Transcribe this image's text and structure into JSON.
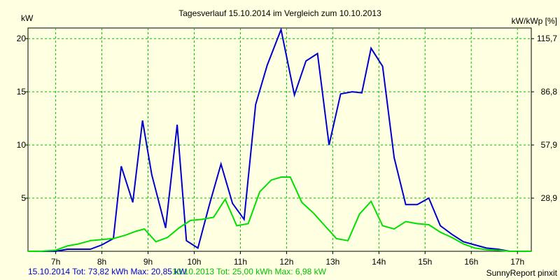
{
  "chart_data": {
    "type": "line",
    "title": "Tagesverlauf 15.10.2014 im Vergleich zum 10.10.2013",
    "ylabel_left": "kW",
    "ylabel_right": "kW/kWp [%]",
    "x_ticks": [
      "7h",
      "8h",
      "9h",
      "10h",
      "11h",
      "12h",
      "13h",
      "14h",
      "15h",
      "16h",
      "17h"
    ],
    "y_left_ticks": [
      "5",
      "10",
      "15",
      "20"
    ],
    "y_right_ticks": [
      "28,9",
      "57,9",
      "86,8",
      "115,7"
    ],
    "xlim": [
      6.4,
      17.3
    ],
    "ylim": [
      0,
      21
    ],
    "grid": true,
    "series": [
      {
        "name": "15.10.2014 Tot: 73,82 kWh Max: 20,85 kW",
        "color": "#0000cc",
        "x": [
          6.4,
          6.67,
          7.0,
          7.25,
          7.5,
          7.75,
          8.0,
          8.25,
          8.42,
          8.67,
          8.88,
          9.08,
          9.38,
          9.63,
          9.83,
          10.08,
          10.33,
          10.58,
          10.83,
          11.08,
          11.33,
          11.58,
          11.88,
          12.17,
          12.42,
          12.67,
          12.92,
          13.17,
          13.42,
          13.63,
          13.83,
          14.08,
          14.33,
          14.58,
          14.83,
          15.08,
          15.33,
          15.58,
          15.83,
          16.08,
          16.33,
          16.58,
          16.83,
          17.08,
          17.3
        ],
        "y": [
          0,
          0,
          0,
          0.2,
          0.2,
          0.2,
          0.6,
          1.2,
          8.0,
          4.6,
          12.3,
          7.2,
          2.2,
          11.9,
          1.0,
          0.3,
          4.4,
          8.2,
          4.5,
          3.0,
          13.8,
          17.5,
          20.85,
          14.7,
          17.9,
          18.6,
          10.0,
          14.8,
          15.0,
          14.9,
          19.1,
          17.4,
          8.8,
          4.4,
          4.4,
          5.0,
          2.4,
          1.6,
          0.9,
          0.6,
          0.3,
          0.2,
          0,
          0,
          0
        ]
      },
      {
        "name": "10.10.2013 Tot: 25,00 kWh Max: 6,98 kW",
        "color": "#00e000",
        "x": [
          6.4,
          6.67,
          7.0,
          7.25,
          7.5,
          7.75,
          8.0,
          8.25,
          8.5,
          8.75,
          8.92,
          9.17,
          9.42,
          9.67,
          9.92,
          10.17,
          10.42,
          10.67,
          10.92,
          11.17,
          11.42,
          11.67,
          11.88,
          12.08,
          12.33,
          12.58,
          12.83,
          13.08,
          13.33,
          13.58,
          13.83,
          14.08,
          14.33,
          14.58,
          14.83,
          15.08,
          15.33,
          15.58,
          15.83,
          16.08,
          16.33,
          16.58,
          16.83,
          17.08,
          17.3
        ],
        "y": [
          0,
          0,
          0.1,
          0.5,
          0.7,
          1.0,
          1.1,
          1.2,
          1.5,
          1.9,
          2.1,
          0.9,
          1.3,
          2.2,
          2.9,
          3.0,
          3.2,
          4.9,
          2.4,
          2.6,
          5.6,
          6.7,
          6.98,
          6.98,
          4.6,
          3.6,
          2.4,
          1.2,
          1.0,
          3.5,
          4.7,
          2.4,
          2.1,
          2.8,
          2.6,
          2.5,
          1.8,
          1.3,
          0.7,
          0.3,
          0.15,
          0.1,
          0,
          0,
          0
        ]
      }
    ],
    "footer_right": "SunnyReport pinxit"
  }
}
